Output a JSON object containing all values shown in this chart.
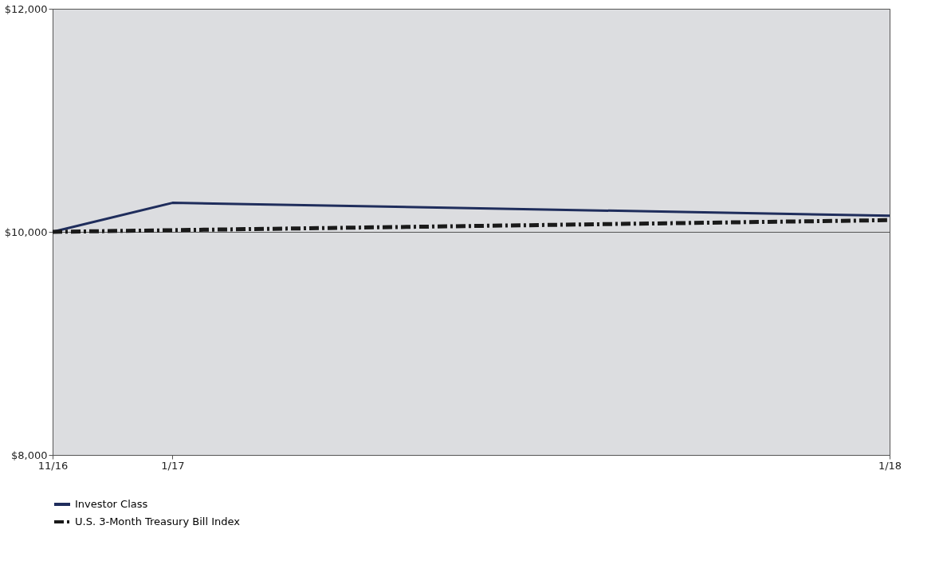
{
  "chart_data": {
    "type": "line",
    "x": [
      "2016-11",
      "2017-01",
      "2018-01"
    ],
    "series": [
      {
        "name": "Investor Class",
        "color": "#1f2d5c",
        "line_style": "solid",
        "values": [
          10000,
          10260,
          10145
        ]
      },
      {
        "name": "U.S. 3-Month Treasury Bill Index",
        "color": "#1a1a1a",
        "line_style": "dashed",
        "values": [
          10000,
          10015,
          10105
        ]
      }
    ],
    "xlim": [
      "2016-11",
      "2018-01"
    ],
    "xticks": [
      {
        "value": "2016-11",
        "label": "11/16"
      },
      {
        "value": "2017-01",
        "label": "1/17"
      },
      {
        "value": "2018-01",
        "label": "1/18"
      }
    ],
    "ylim": [
      8000,
      12000
    ],
    "yticks": [
      {
        "value": 8000,
        "label": "$8,000"
      },
      {
        "value": 10000,
        "label": "$10,000"
      },
      {
        "value": 12000,
        "label": "$12,000"
      }
    ],
    "grid": "y",
    "legend": "bottom",
    "marker": "none"
  }
}
